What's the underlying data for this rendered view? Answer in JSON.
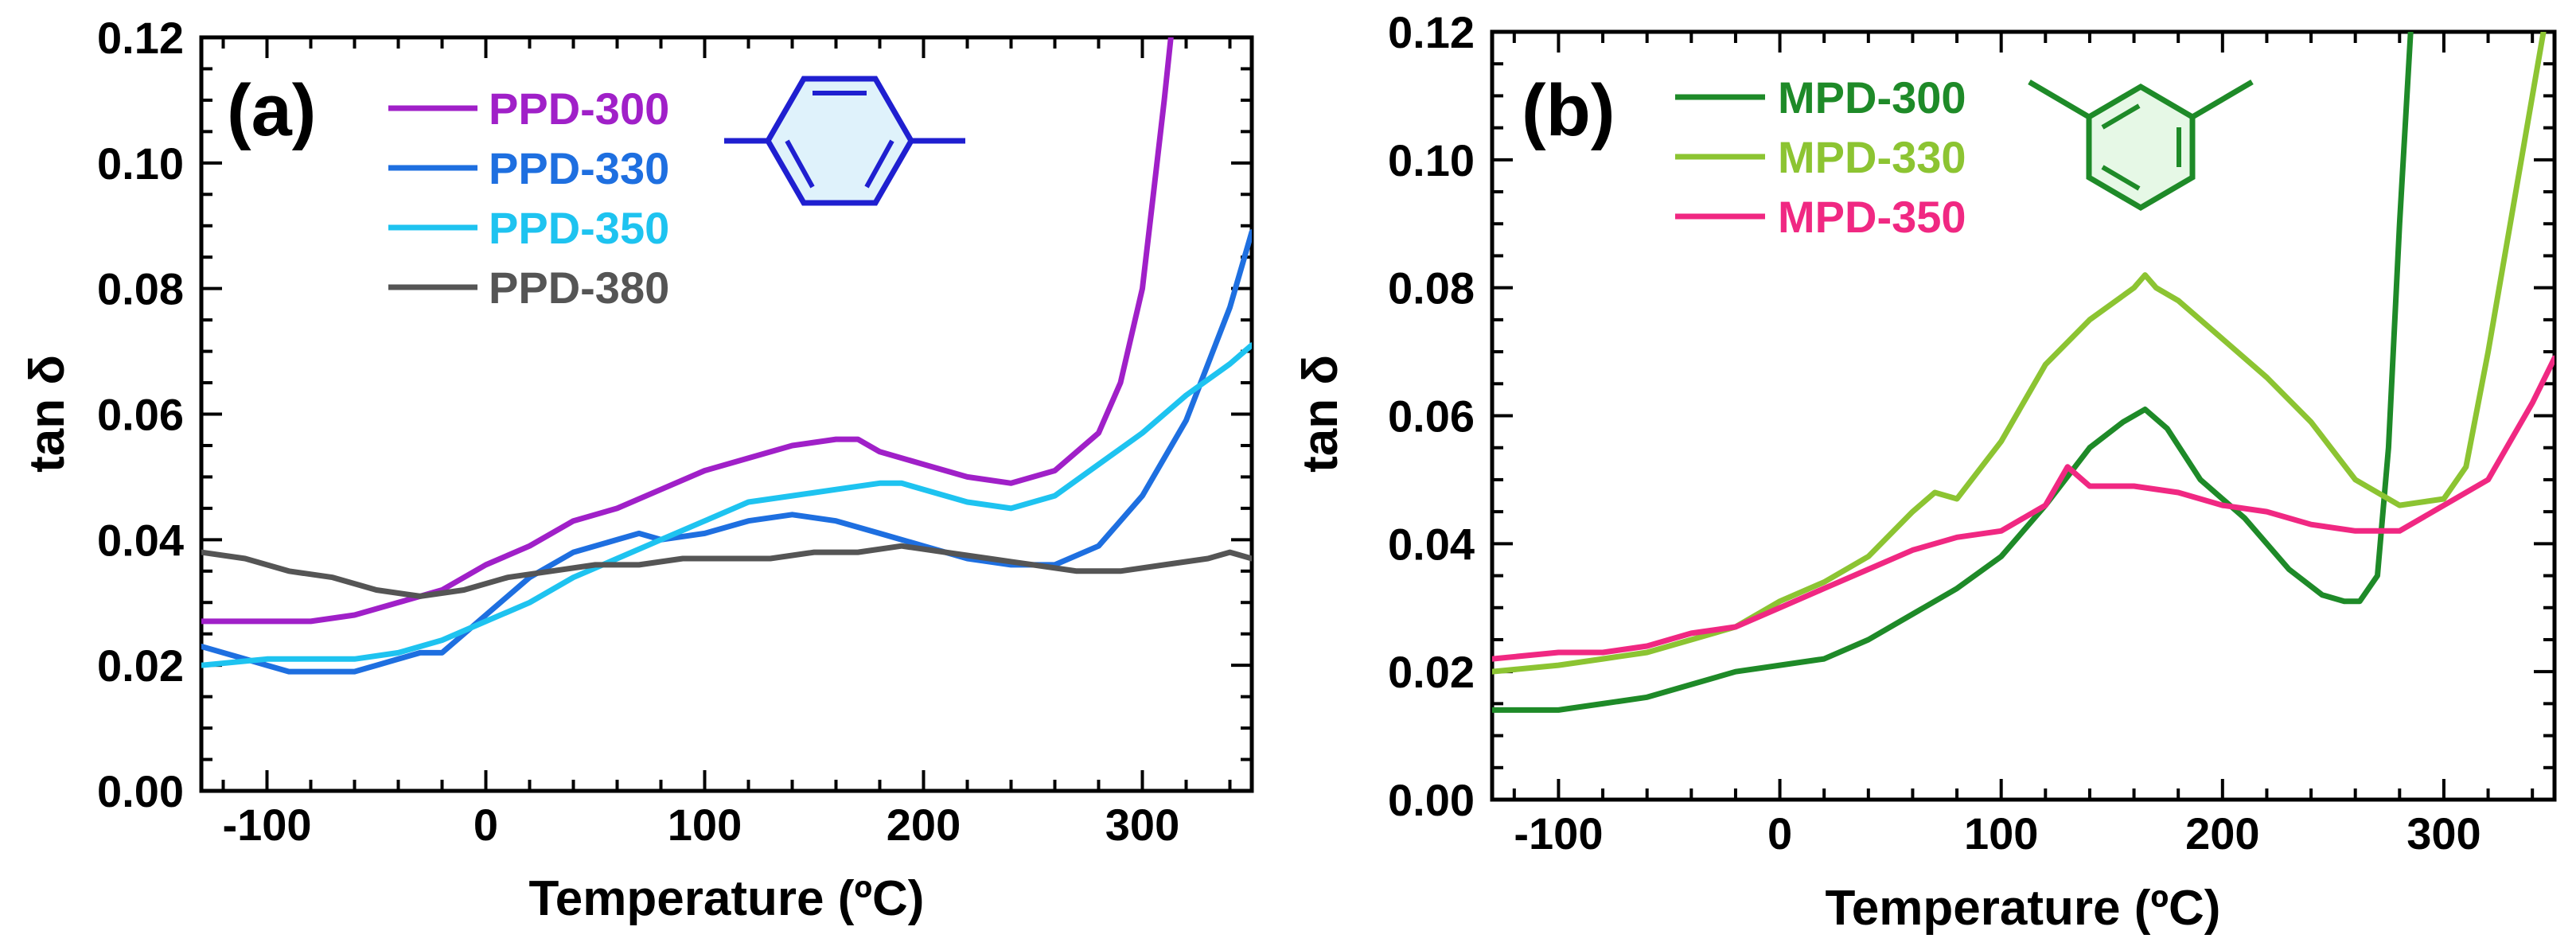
{
  "chart_data": [
    {
      "type": "line",
      "panel_label": "(a)",
      "xlabel": "Temperature (ºC)",
      "ylabel": "tan δ",
      "xlim": [
        -130,
        350
      ],
      "ylim": [
        0.0,
        0.12
      ],
      "xticks": [
        -100,
        0,
        100,
        200,
        300
      ],
      "xtick_labels": [
        "-100",
        "0",
        "100",
        "200",
        "300"
      ],
      "yticks": [
        0.0,
        0.02,
        0.04,
        0.06,
        0.08,
        0.1,
        0.12
      ],
      "ytick_labels": [
        "0.00",
        "0.02",
        "0.04",
        "0.06",
        "0.08",
        "0.10",
        "0.12"
      ],
      "inset_structure": "para-phenylene",
      "structure_color": "#1f1fd0",
      "series": [
        {
          "name": "PPD-300",
          "color": "#a020c8",
          "x": [
            -130,
            -100,
            -80,
            -60,
            -40,
            -20,
            0,
            20,
            40,
            60,
            80,
            100,
            120,
            140,
            160,
            170,
            180,
            200,
            220,
            240,
            260,
            280,
            290,
            300,
            305,
            310,
            313
          ],
          "y": [
            0.027,
            0.027,
            0.027,
            0.028,
            0.03,
            0.032,
            0.036,
            0.039,
            0.043,
            0.045,
            0.048,
            0.051,
            0.053,
            0.055,
            0.056,
            0.056,
            0.054,
            0.052,
            0.05,
            0.049,
            0.051,
            0.057,
            0.065,
            0.08,
            0.095,
            0.11,
            0.12
          ]
        },
        {
          "name": "PPD-330",
          "color": "#1e6fe0",
          "x": [
            -130,
            -110,
            -100,
            -90,
            -80,
            -70,
            -60,
            -50,
            -40,
            -30,
            -20,
            0,
            20,
            40,
            60,
            70,
            80,
            100,
            120,
            140,
            160,
            180,
            200,
            220,
            240,
            260,
            280,
            300,
            320,
            340,
            350
          ],
          "y": [
            0.023,
            0.021,
            0.02,
            0.019,
            0.019,
            0.019,
            0.019,
            0.02,
            0.021,
            0.022,
            0.022,
            0.028,
            0.034,
            0.038,
            0.04,
            0.041,
            0.04,
            0.041,
            0.043,
            0.044,
            0.043,
            0.041,
            0.039,
            0.037,
            0.036,
            0.036,
            0.039,
            0.047,
            0.059,
            0.077,
            0.089
          ]
        },
        {
          "name": "PPD-350",
          "color": "#1ec3f0",
          "x": [
            -130,
            -100,
            -80,
            -60,
            -40,
            -20,
            0,
            20,
            40,
            60,
            80,
            100,
            120,
            140,
            160,
            180,
            190,
            200,
            220,
            240,
            260,
            280,
            300,
            320,
            340,
            350
          ],
          "y": [
            0.02,
            0.021,
            0.021,
            0.021,
            0.022,
            0.024,
            0.027,
            0.03,
            0.034,
            0.037,
            0.04,
            0.043,
            0.046,
            0.047,
            0.048,
            0.049,
            0.049,
            0.048,
            0.046,
            0.045,
            0.047,
            0.052,
            0.057,
            0.063,
            0.068,
            0.071
          ]
        },
        {
          "name": "PPD-380",
          "color": "#555555",
          "x": [
            -130,
            -110,
            -90,
            -70,
            -50,
            -30,
            -10,
            10,
            30,
            50,
            70,
            90,
            110,
            130,
            150,
            170,
            190,
            210,
            230,
            250,
            270,
            290,
            310,
            330,
            340,
            350
          ],
          "y": [
            0.038,
            0.037,
            0.035,
            0.034,
            0.032,
            0.031,
            0.032,
            0.034,
            0.035,
            0.036,
            0.036,
            0.037,
            0.037,
            0.037,
            0.038,
            0.038,
            0.039,
            0.038,
            0.037,
            0.036,
            0.035,
            0.035,
            0.036,
            0.037,
            0.038,
            0.037
          ]
        }
      ]
    },
    {
      "type": "line",
      "panel_label": "(b)",
      "xlabel": "Temperature (ºC)",
      "ylabel": "tan δ",
      "xlim": [
        -130,
        350
      ],
      "ylim": [
        0.0,
        0.12
      ],
      "xticks": [
        -100,
        0,
        100,
        200,
        300
      ],
      "xtick_labels": [
        "-100",
        "0",
        "100",
        "200",
        "300"
      ],
      "yticks": [
        0.0,
        0.02,
        0.04,
        0.06,
        0.08,
        0.1,
        0.12
      ],
      "ytick_labels": [
        "0.00",
        "0.02",
        "0.04",
        "0.06",
        "0.08",
        "0.10",
        "0.12"
      ],
      "inset_structure": "meta-phenylene",
      "structure_color": "#1e8a28",
      "series": [
        {
          "name": "MPD-300",
          "color": "#1e8a28",
          "x": [
            -130,
            -100,
            -80,
            -60,
            -40,
            -20,
            0,
            20,
            40,
            60,
            80,
            100,
            120,
            140,
            155,
            165,
            175,
            190,
            210,
            230,
            245,
            255,
            262,
            270,
            275,
            280,
            285
          ],
          "y": [
            0.014,
            0.014,
            0.015,
            0.016,
            0.018,
            0.02,
            0.021,
            0.022,
            0.025,
            0.029,
            0.033,
            0.038,
            0.046,
            0.055,
            0.059,
            0.061,
            0.058,
            0.05,
            0.044,
            0.036,
            0.032,
            0.031,
            0.031,
            0.035,
            0.055,
            0.09,
            0.12
          ]
        },
        {
          "name": "MPD-330",
          "color": "#8cc432",
          "x": [
            -130,
            -100,
            -80,
            -60,
            -40,
            -20,
            0,
            20,
            40,
            60,
            70,
            80,
            100,
            120,
            140,
            160,
            165,
            170,
            180,
            200,
            220,
            240,
            260,
            280,
            300,
            310,
            320,
            330,
            340,
            345
          ],
          "y": [
            0.02,
            0.021,
            0.022,
            0.023,
            0.025,
            0.027,
            0.031,
            0.034,
            0.038,
            0.045,
            0.048,
            0.047,
            0.056,
            0.068,
            0.075,
            0.08,
            0.082,
            0.08,
            0.078,
            0.072,
            0.066,
            0.059,
            0.05,
            0.046,
            0.047,
            0.052,
            0.07,
            0.09,
            0.11,
            0.12
          ]
        },
        {
          "name": "MPD-350",
          "color": "#f02882",
          "x": [
            -130,
            -100,
            -80,
            -60,
            -40,
            -20,
            0,
            20,
            40,
            60,
            80,
            100,
            120,
            130,
            140,
            160,
            180,
            200,
            220,
            240,
            260,
            280,
            300,
            320,
            340,
            350
          ],
          "y": [
            0.022,
            0.023,
            0.023,
            0.024,
            0.026,
            0.027,
            0.03,
            0.033,
            0.036,
            0.039,
            0.041,
            0.042,
            0.046,
            0.052,
            0.049,
            0.049,
            0.048,
            0.046,
            0.045,
            0.043,
            0.042,
            0.042,
            0.046,
            0.05,
            0.062,
            0.069
          ]
        }
      ]
    }
  ]
}
